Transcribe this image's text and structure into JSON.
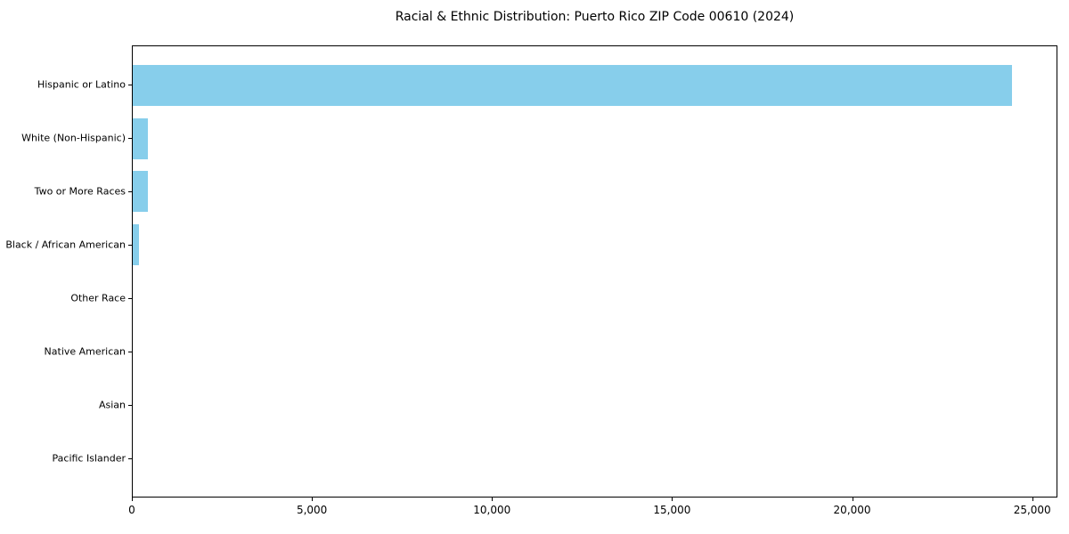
{
  "chart_data": {
    "type": "bar",
    "orientation": "horizontal",
    "title": "Racial & Ethnic Distribution: Puerto Rico ZIP Code 00610 (2024)",
    "categories": [
      "Hispanic or Latino",
      "White (Non-Hispanic)",
      "Two or More Races",
      "Black / African American",
      "Other Race",
      "Native American",
      "Asian",
      "Pacific Islander"
    ],
    "values": [
      24460,
      430,
      425,
      183,
      0,
      0,
      0,
      0
    ],
    "xlabel": "",
    "ylabel": "",
    "xlim": [
      0,
      25700
    ],
    "xticks": [
      {
        "value": 0,
        "label": "0"
      },
      {
        "value": 5000,
        "label": "5,000"
      },
      {
        "value": 10000,
        "label": "10,000"
      },
      {
        "value": 15000,
        "label": "15,000"
      },
      {
        "value": 20000,
        "label": "20,000"
      },
      {
        "value": 25000,
        "label": "25,000"
      }
    ],
    "grid": false,
    "legend": null,
    "bar_color": "#87CEEB",
    "spine_color": "#000000",
    "text_color": "#000000",
    "background_color": "#ffffff"
  }
}
